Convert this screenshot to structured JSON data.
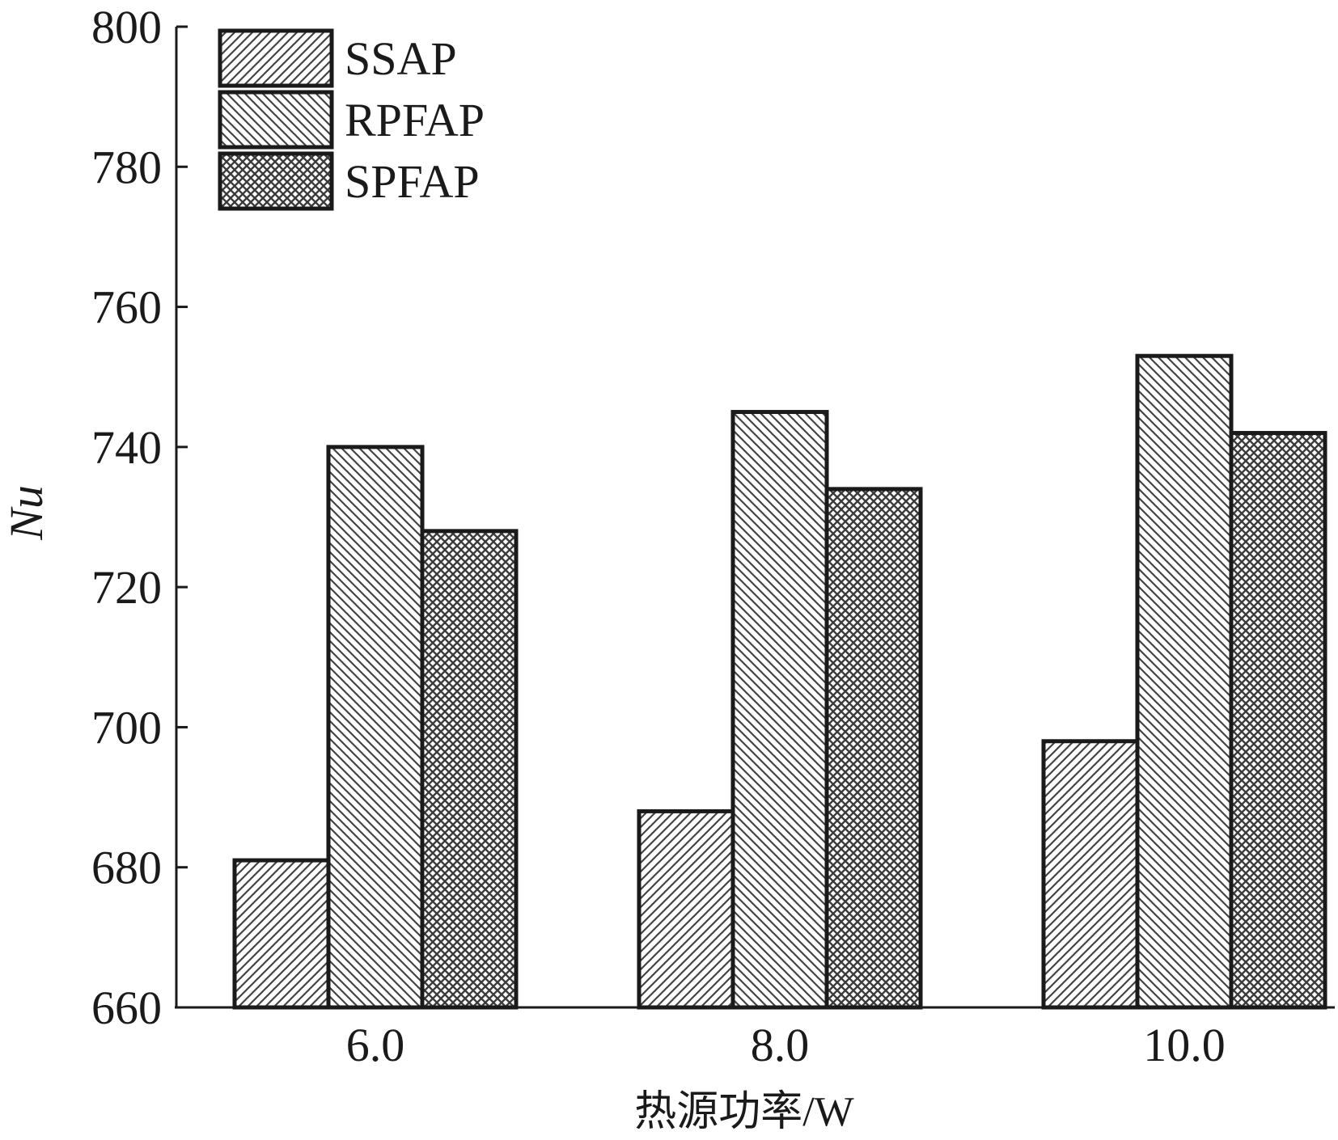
{
  "chart_data": {
    "type": "bar",
    "title": "",
    "xlabel": "热源功率/W",
    "ylabel": "Nu",
    "ylim": [
      660,
      800
    ],
    "yticks": [
      660,
      680,
      700,
      720,
      740,
      760,
      780,
      800
    ],
    "categories": [
      "6.0",
      "8.0",
      "10.0"
    ],
    "series": [
      {
        "name": "SSAP",
        "values": [
          681,
          688,
          698
        ],
        "pattern": "diag-right"
      },
      {
        "name": "RPFAP",
        "values": [
          740,
          745,
          753
        ],
        "pattern": "diag-left"
      },
      {
        "name": "SPFAP",
        "values": [
          728,
          734,
          742
        ],
        "pattern": "crosshatch"
      }
    ],
    "legend": {
      "placement": "top-left"
    },
    "grid": false,
    "colors": {
      "stroke": "#1a1a1a",
      "hatch": "#4a4a4a",
      "background": "#ffffff"
    }
  }
}
